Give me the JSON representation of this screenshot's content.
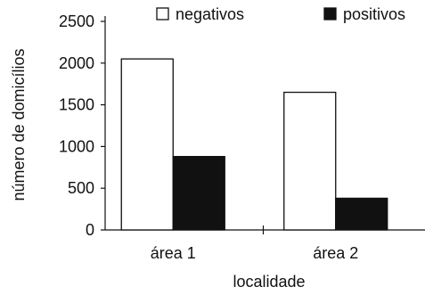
{
  "chart_data": {
    "type": "bar",
    "categories": [
      "área 1",
      "área 2"
    ],
    "series": [
      {
        "name": "negativos",
        "values": [
          2050,
          1650
        ],
        "fill": "#ffffff"
      },
      {
        "name": "positivos",
        "values": [
          880,
          380
        ],
        "fill": "#111111"
      }
    ],
    "xlabel": "localidade",
    "ylabel": "número de domicílios",
    "ylim": [
      0,
      2500
    ],
    "yticks": [
      0,
      500,
      1000,
      1500,
      2000,
      2500
    ],
    "grid": false,
    "legend_position": "top"
  }
}
